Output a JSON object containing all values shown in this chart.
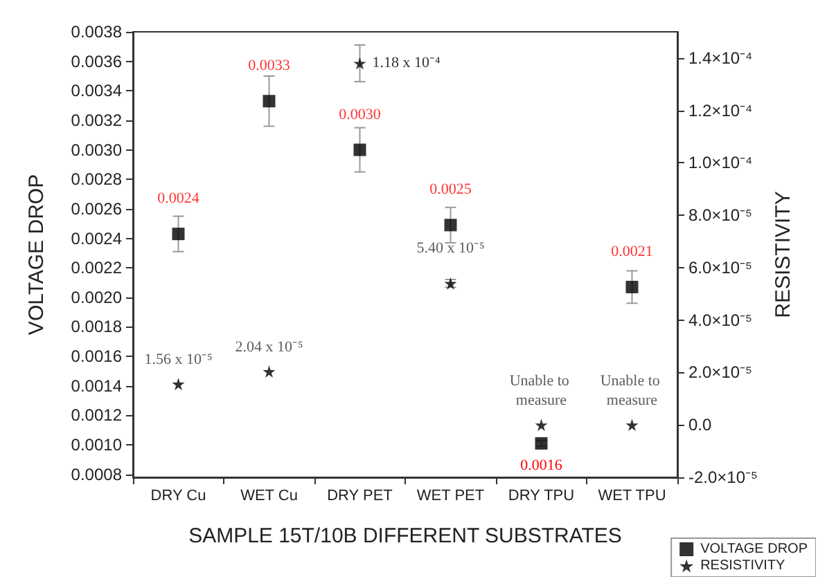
{
  "chart_data": {
    "type": "scatter",
    "xlabel": "SAMPLE 15T/10B DIFFERENT SUBSTRATES",
    "ylabel": "VOLTAGE DROP",
    "y2label": "RESISTIVITY",
    "categories": [
      "DRY Cu",
      "WET Cu",
      "DRY PET",
      "WET PET",
      "DRY TPU",
      "WET TPU"
    ],
    "series": [
      {
        "name": "VOLTAGE DROP",
        "color": "#000000",
        "marker": "square",
        "values": [
          0.00243,
          0.00333,
          0.003,
          0.00249,
          0.00101,
          0.00207
        ],
        "errors": [
          0.00012,
          0.00017,
          0.00015,
          0.00012,
          2e-05,
          0.00011
        ],
        "value_labels": [
          "0.0024",
          "0.0033",
          "0.0030",
          "0.0025",
          null,
          "0.0021"
        ]
      },
      {
        "name": "RESISTIVITY",
        "color": "#000000",
        "marker": "star",
        "axis": "y2",
        "values": [
          1.56e-05,
          2.04e-05,
          0.000138,
          5.4e-05,
          0,
          0
        ],
        "errors": [
          null,
          null,
          7e-06,
          1.5e-06,
          null,
          null
        ],
        "value_labels": [
          "1.56 x 10⁻⁵",
          "2.04 x 10⁻⁵",
          null,
          "5.40 x 10⁻⁵",
          "Unable to measure",
          "Unable to measure"
        ]
      }
    ],
    "annotations": [
      {
        "text": "0.0016",
        "x": "DRY TPU",
        "y": 0.00101
      },
      {
        "text": "1.18 x 10⁻⁴",
        "x": "DRY PET",
        "y": 0.00359
      }
    ],
    "ylim": [
      0.00078,
      0.0038
    ],
    "yticks": [
      {
        "value": 0.0008,
        "label": "0.0008"
      },
      {
        "value": 0.001,
        "label": "0.0010"
      },
      {
        "value": 0.0012,
        "label": "0.0012"
      },
      {
        "value": 0.0014,
        "label": "0.0014"
      },
      {
        "value": 0.0016,
        "label": "0.0016"
      },
      {
        "value": 0.0018,
        "label": "0.0018"
      },
      {
        "value": 0.002,
        "label": "0.0020"
      },
      {
        "value": 0.0022,
        "label": "0.0022"
      },
      {
        "value": 0.0024,
        "label": "0.0024"
      },
      {
        "value": 0.0026,
        "label": "0.0026"
      },
      {
        "value": 0.0028,
        "label": "0.0028"
      },
      {
        "value": 0.003,
        "label": "0.0030"
      },
      {
        "value": 0.0032,
        "label": "0.0032"
      },
      {
        "value": 0.0034,
        "label": "0.0034"
      },
      {
        "value": 0.0036,
        "label": "0.0036"
      },
      {
        "value": 0.0038,
        "label": "0.0038"
      }
    ],
    "y2lim": [
      -2e-05,
      0.00015
    ],
    "y2ticks": [
      {
        "value": -2e-05,
        "label": "-2.0×10⁻⁵"
      },
      {
        "value": 0,
        "label": "0.0"
      },
      {
        "value": 2e-05,
        "label": "2.0×10⁻⁵"
      },
      {
        "value": 4e-05,
        "label": "4.0×10⁻⁵"
      },
      {
        "value": 6e-05,
        "label": "6.0×10⁻⁵"
      },
      {
        "value": 8e-05,
        "label": "8.0×10⁻⁵"
      },
      {
        "value": 0.0001,
        "label": "1.0×10⁻⁴"
      },
      {
        "value": 0.00012,
        "label": "1.2×10⁻⁴"
      },
      {
        "value": 0.00014,
        "label": "1.4×10⁻⁴"
      }
    ],
    "grid": false,
    "legend": "bottom right"
  }
}
